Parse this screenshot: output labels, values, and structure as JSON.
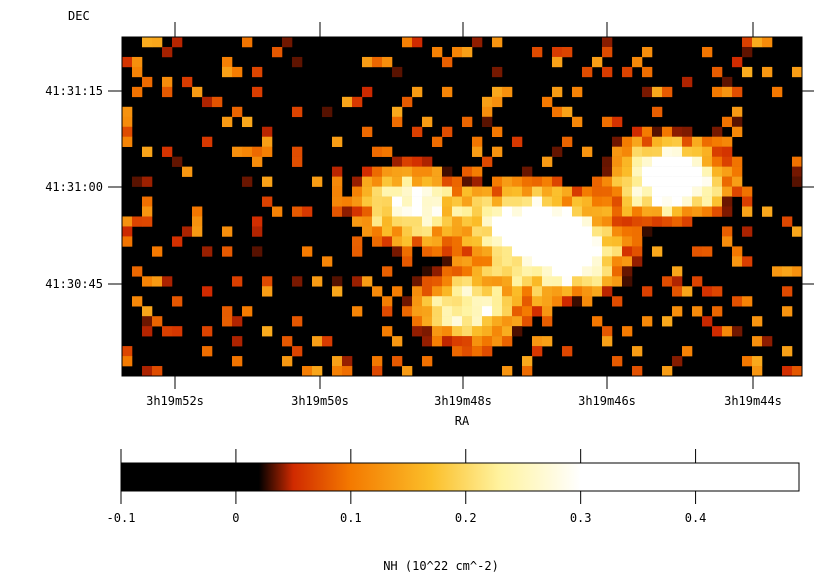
{
  "chart_data": [
    {
      "type": "heatmap",
      "title": "",
      "xlabel": "RA",
      "ylabel": "DEC",
      "x_ticks": [
        "3h19m52s",
        "3h19m50s",
        "3h19m48s",
        "3h19m46s",
        "3h19m44s"
      ],
      "y_ticks": [
        "41:31:15",
        "41:31:00",
        "41:30:45"
      ],
      "grid": false,
      "background": "#000000",
      "z_description": "NH column density map (pixel intensity, 10^22 cm^-2)",
      "hotspots": [
        {
          "ra": "3h19m48.8s",
          "dec": "41:30:58",
          "value": 0.3
        },
        {
          "ra": "3h19m47.2s",
          "dec": "41:30:55",
          "value": 0.35
        },
        {
          "ra": "3h19m46.6s",
          "dec": "41:30:50",
          "value": 0.35
        },
        {
          "ra": "3h19m45.2s",
          "dec": "41:31:02",
          "value": 0.42
        },
        {
          "ra": "3h19m48.0s",
          "dec": "41:30:42",
          "value": 0.28
        }
      ]
    },
    {
      "type": "colorbar",
      "xlabel": "NH (10^22 cm^-2)",
      "range": [
        -0.1,
        0.49
      ],
      "ticks": [
        "-0.1",
        "0",
        "0.1",
        "0.2",
        "0.3",
        "0.4"
      ],
      "tick_values": [
        -0.1,
        0,
        0.1,
        0.2,
        0.3,
        0.4
      ],
      "colormap": [
        {
          "value": -0.1,
          "color": "#000000"
        },
        {
          "value": 0.02,
          "color": "#000000"
        },
        {
          "value": 0.05,
          "color": "#d02a00"
        },
        {
          "value": 0.1,
          "color": "#f47a00"
        },
        {
          "value": 0.17,
          "color": "#fbbf2a"
        },
        {
          "value": 0.23,
          "color": "#fff3a0"
        },
        {
          "value": 0.3,
          "color": "#ffffff"
        },
        {
          "value": 0.49,
          "color": "#ffffff"
        }
      ]
    }
  ]
}
